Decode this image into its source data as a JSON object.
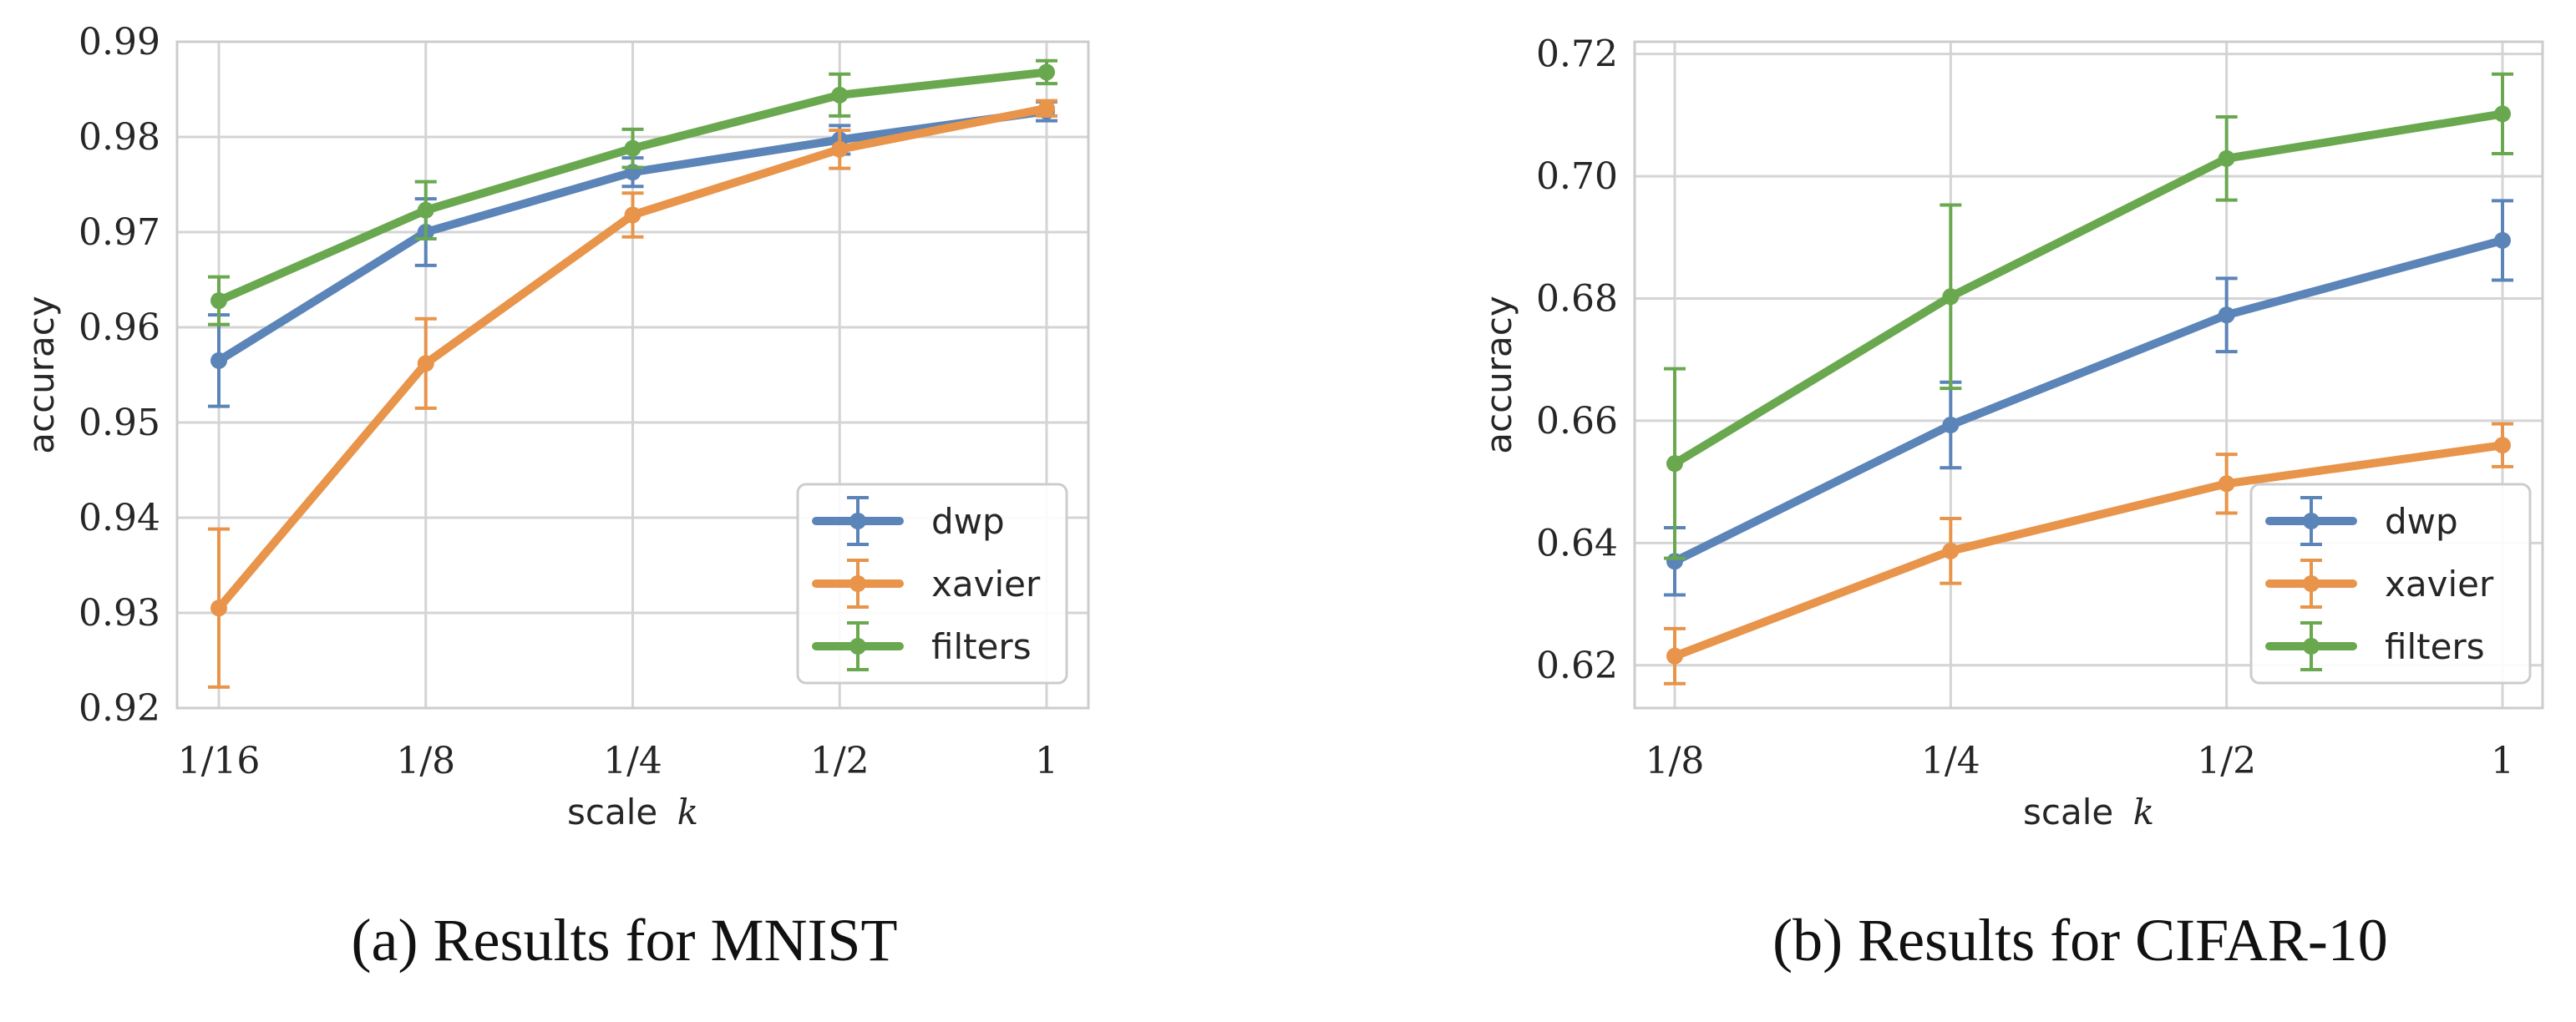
{
  "colors": {
    "dwp": "#5b84b8",
    "xavier": "#e8944a",
    "filters": "#6aa84f"
  },
  "chart_data": [
    {
      "type": "line",
      "caption": "(a) Results for MNIST",
      "xlabel": "scale",
      "xlabel_var": "k",
      "ylabel": "accuracy",
      "categories": [
        "1/16",
        "1/8",
        "1/4",
        "1/2",
        "1"
      ],
      "ylim": [
        0.92,
        0.99
      ],
      "yticks": [
        "0.92",
        "0.93",
        "0.94",
        "0.95",
        "0.96",
        "0.97",
        "0.98",
        "0.99"
      ],
      "grid": true,
      "legend": "bottom-right",
      "series": [
        {
          "name": "dwp",
          "color_key": "dwp",
          "values": [
            0.9565,
            0.97,
            0.9763,
            0.9797,
            0.9827
          ],
          "errors": [
            0.0048,
            0.0035,
            0.0015,
            0.0015,
            0.001
          ]
        },
        {
          "name": "xavier",
          "color_key": "xavier",
          "values": [
            0.9305,
            0.9562,
            0.9718,
            0.9787,
            0.983
          ],
          "errors": [
            0.0083,
            0.0047,
            0.0023,
            0.002,
            0.0008
          ]
        },
        {
          "name": "filters",
          "color_key": "filters",
          "values": [
            0.9628,
            0.9723,
            0.9788,
            0.9844,
            0.9868
          ],
          "errors": [
            0.0025,
            0.003,
            0.002,
            0.0022,
            0.0012
          ]
        }
      ]
    },
    {
      "type": "line",
      "caption": "(b) Results for CIFAR-10",
      "xlabel": "scale",
      "xlabel_var": "k",
      "ylabel": "accuracy",
      "categories": [
        "1/8",
        "1/4",
        "1/2",
        "1"
      ],
      "ylim": [
        0.613,
        0.722
      ],
      "yticks": [
        "0.62",
        "0.64",
        "0.66",
        "0.68",
        "0.70",
        "0.72"
      ],
      "grid": true,
      "legend": "bottom-right",
      "series": [
        {
          "name": "dwp",
          "color_key": "dwp",
          "values": [
            0.637,
            0.6593,
            0.6773,
            0.6895
          ],
          "errors": [
            0.0055,
            0.007,
            0.006,
            0.0065
          ]
        },
        {
          "name": "xavier",
          "color_key": "xavier",
          "values": [
            0.6215,
            0.6387,
            0.6497,
            0.656
          ],
          "errors": [
            0.0045,
            0.0053,
            0.0048,
            0.0035
          ]
        },
        {
          "name": "filters",
          "color_key": "filters",
          "values": [
            0.653,
            0.6803,
            0.7029,
            0.7102
          ],
          "errors": [
            0.0155,
            0.015,
            0.0068,
            0.0065
          ]
        }
      ]
    }
  ]
}
